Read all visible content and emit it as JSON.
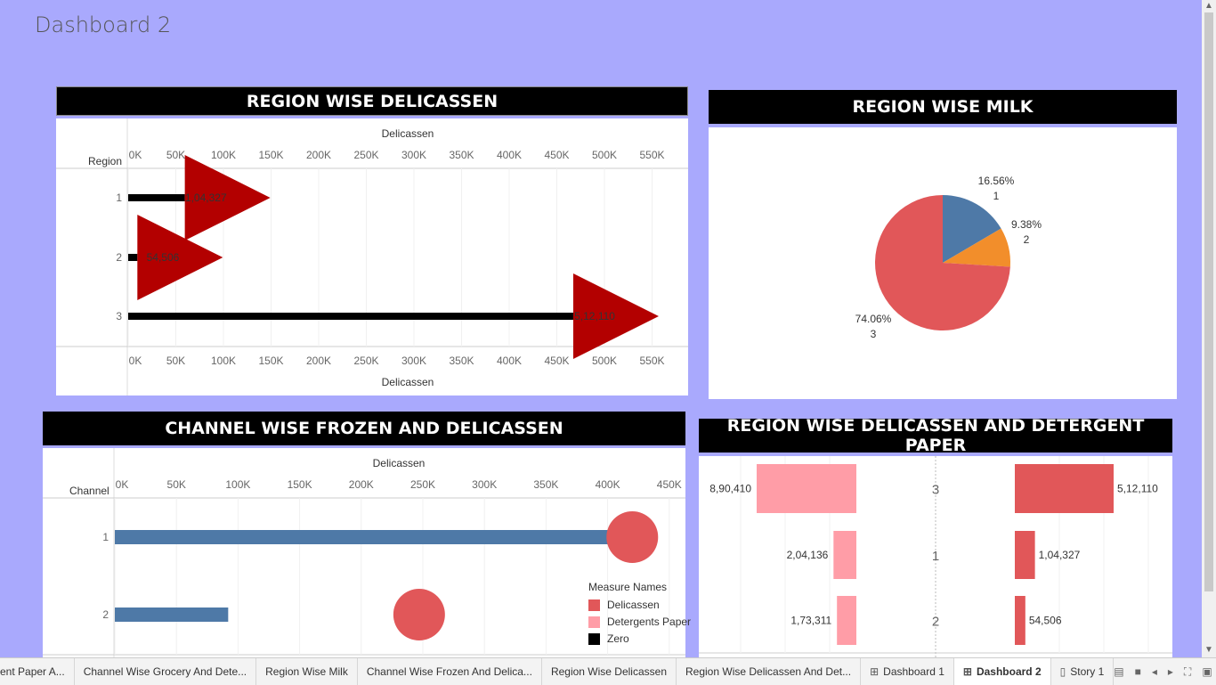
{
  "dashboard": {
    "title": "Dashboard 2"
  },
  "colors": {
    "background": "#a9a9fd",
    "red": "#e15759",
    "darkred": "#b30000",
    "blue": "#4e79a7",
    "orange": "#f28e2b",
    "pink": "#ff9da7",
    "black": "#000000"
  },
  "delicassen_panel": {
    "title": "REGION WISE DELICASSEN",
    "row_header": "Region",
    "axis_title": "Delicassen",
    "ticks": [
      "0K",
      "50K",
      "100K",
      "150K",
      "200K",
      "250K",
      "300K",
      "350K",
      "400K",
      "450K",
      "500K",
      "550K"
    ],
    "chart_data": {
      "type": "bar",
      "categories": [
        "1",
        "2",
        "3"
      ],
      "values": [
        104327,
        54506,
        512110
      ],
      "labels": [
        "1,04,327",
        "54,506",
        "5,12,110"
      ],
      "xlim": [
        0,
        590000
      ]
    }
  },
  "milk_panel": {
    "title": "REGION WISE MILK",
    "chart_data": {
      "type": "pie",
      "slices": [
        {
          "label": "1",
          "percent": 16.56,
          "percent_label": "16.56%",
          "color": "#4e79a7"
        },
        {
          "label": "2",
          "percent": 9.38,
          "percent_label": "9.38%",
          "color": "#f28e2b"
        },
        {
          "label": "3",
          "percent": 74.06,
          "percent_label": "74.06%",
          "color": "#e15759"
        }
      ]
    }
  },
  "frozen_panel": {
    "title": "CHANNEL WISE FROZEN AND DELICASSEN",
    "row_header": "Channel",
    "axis_title": "Delicassen",
    "ticks": [
      "0K",
      "50K",
      "100K",
      "150K",
      "200K",
      "250K",
      "300K",
      "350K",
      "400K",
      "450K"
    ],
    "chart_data": {
      "type": "bar",
      "categories": [
        "1",
        "2"
      ],
      "bar_values": [
        420000,
        92000
      ],
      "circle_values": [
        420000,
        247000
      ],
      "xlim": [
        0,
        460000
      ]
    },
    "legend": {
      "title": "Measure Names",
      "items": [
        {
          "label": "Delicassen",
          "color": "#e15759"
        },
        {
          "label": "Detergents Paper",
          "color": "#ff9da7"
        },
        {
          "label": "Zero",
          "color": "#000000"
        }
      ]
    }
  },
  "detergent_panel": {
    "title": "REGION WISE DELICASSEN AND DETERGENT PAPER",
    "chart_data": {
      "type": "bar",
      "categories": [
        "3",
        "1",
        "2"
      ],
      "detergents": [
        890410,
        204136,
        173311
      ],
      "detergent_labels": [
        "8,90,410",
        "2,04,136",
        "1,73,311"
      ],
      "delicassen": [
        512110,
        104327,
        54506
      ],
      "delicassen_labels": [
        "5,12,110",
        "1,04,327",
        "54,506"
      ]
    }
  },
  "tabs": [
    {
      "label": "ent Paper A...",
      "icon": ""
    },
    {
      "label": "Channel Wise Grocery And Dete...",
      "icon": ""
    },
    {
      "label": "Region Wise Milk",
      "icon": ""
    },
    {
      "label": "Channel Wise Frozen And Delica...",
      "icon": ""
    },
    {
      "label": "Region Wise Delicassen",
      "icon": ""
    },
    {
      "label": "Region Wise Delicassen And Det...",
      "icon": ""
    },
    {
      "label": "Dashboard 1",
      "icon": "dashboard-icon"
    },
    {
      "label": "Dashboard 2",
      "icon": "dashboard-icon",
      "active": true
    },
    {
      "label": "Story 1",
      "icon": "story-icon"
    }
  ]
}
